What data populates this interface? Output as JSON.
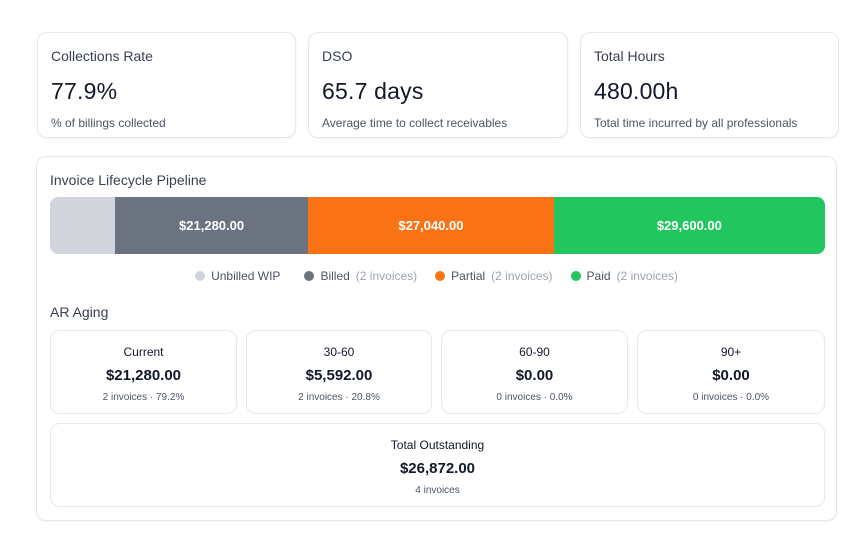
{
  "kpis": [
    {
      "title": "Collections Rate",
      "value": "77.9%",
      "subtitle": "% of billings collected"
    },
    {
      "title": "DSO",
      "value": "65.7 days",
      "subtitle": "Average time to collect receivables"
    },
    {
      "title": "Total Hours",
      "value": "480.00h",
      "subtitle": "Total time incurred by all professionals"
    }
  ],
  "pipeline": {
    "title": "Invoice Lifecycle Pipeline",
    "segments": [
      {
        "name": "Unbilled WIP",
        "label": "",
        "color": "#d1d5db",
        "share": 0.084
      },
      {
        "name": "Billed",
        "label": "$21,280.00",
        "color": "#6b7280",
        "share": 0.249
      },
      {
        "name": "Partial",
        "label": "$27,040.00",
        "color": "#f97316",
        "share": 0.317
      },
      {
        "name": "Paid",
        "label": "$29,600.00",
        "color": "#22c55e",
        "share": 0.35
      }
    ],
    "legend": [
      {
        "label": "Unbilled WIP",
        "count": "",
        "color": "#d1d5db"
      },
      {
        "label": "Billed",
        "count": "(2 invoices)",
        "color": "#6b7280"
      },
      {
        "label": "Partial",
        "count": "(2 invoices)",
        "color": "#f97316"
      },
      {
        "label": "Paid",
        "count": "(2 invoices)",
        "color": "#22c55e"
      }
    ]
  },
  "ar_aging": {
    "title": "AR Aging",
    "buckets": [
      {
        "label": "Current",
        "value": "$21,280.00",
        "detail": "2 invoices · 79.2%"
      },
      {
        "label": "30-60",
        "value": "$5,592.00",
        "detail": "2 invoices · 20.8%"
      },
      {
        "label": "60-90",
        "value": "$0.00",
        "detail": "0 invoices · 0.0%"
      },
      {
        "label": "90+",
        "value": "$0.00",
        "detail": "0 invoices · 0.0%"
      }
    ],
    "total": {
      "label": "Total Outstanding",
      "value": "$26,872.00",
      "detail": "4 invoices"
    }
  }
}
